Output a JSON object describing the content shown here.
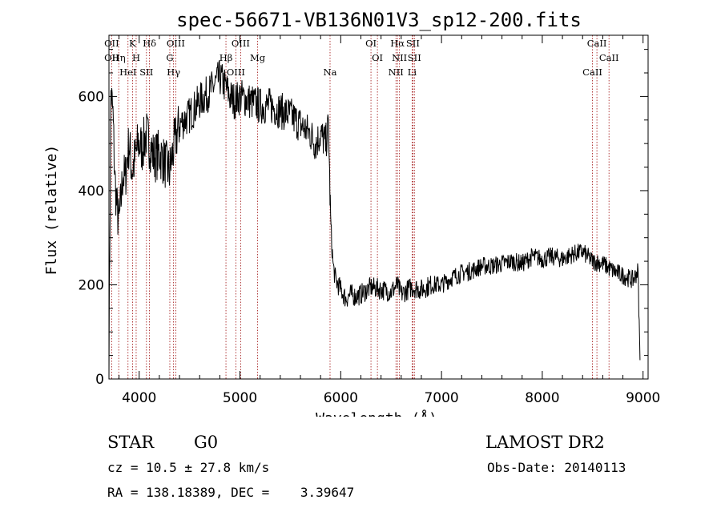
{
  "chart_data": {
    "type": "line",
    "title": "spec-56671-VB136N01V3_sp12-200.fits",
    "xlabel": "Wavelength (Å)",
    "ylabel": "Flux (relative)",
    "xlim": [
      3700,
      9050
    ],
    "ylim": [
      0,
      730
    ],
    "xticks": [
      4000,
      5000,
      6000,
      7000,
      8000,
      9000
    ],
    "yticks": [
      0,
      200,
      400,
      600
    ],
    "series": [
      {
        "name": "flux",
        "x": [
          3700,
          3720,
          3740,
          3760,
          3780,
          3800,
          3820,
          3840,
          3860,
          3880,
          3900,
          3930,
          3960,
          3990,
          4030,
          4070,
          4100,
          4150,
          4200,
          4250,
          4300,
          4350,
          4400,
          4500,
          4600,
          4700,
          4800,
          4860,
          4900,
          4950,
          5000,
          5100,
          5200,
          5300,
          5400,
          5500,
          5600,
          5700,
          5750,
          5800,
          5850,
          5880,
          5890,
          5900,
          5910,
          5925,
          5950,
          6000,
          6050,
          6100,
          6150,
          6200,
          6300,
          6400,
          6500,
          6560,
          6600,
          6700,
          6800,
          6900,
          7000,
          7100,
          7200,
          7300,
          7400,
          7500,
          7600,
          7700,
          7800,
          7900,
          8000,
          8100,
          8200,
          8300,
          8400,
          8500,
          8600,
          8700,
          8800,
          8900,
          8950,
          8970
        ],
        "y": [
          50,
          610,
          560,
          420,
          360,
          330,
          380,
          440,
          420,
          470,
          500,
          440,
          470,
          500,
          490,
          520,
          500,
          470,
          480,
          460,
          440,
          500,
          540,
          560,
          590,
          610,
          640,
          620,
          600,
          590,
          600,
          590,
          580,
          580,
          570,
          560,
          540,
          520,
          500,
          520,
          500,
          540,
          420,
          340,
          290,
          240,
          210,
          190,
          170,
          180,
          175,
          180,
          195,
          190,
          185,
          200,
          180,
          195,
          190,
          200,
          200,
          215,
          225,
          230,
          240,
          240,
          245,
          250,
          245,
          260,
          255,
          260,
          255,
          265,
          270,
          250,
          245,
          230,
          220,
          210,
          230,
          40
        ]
      }
    ],
    "line_markers": [
      {
        "wl": 3727,
        "labels": [
          "OII",
          "OII"
        ]
      },
      {
        "wl": 3797,
        "labels": [
          "Hη"
        ]
      },
      {
        "wl": 3889,
        "labels": [
          "HeI"
        ]
      },
      {
        "wl": 3934,
        "labels": [
          "K"
        ]
      },
      {
        "wl": 3970,
        "labels": [
          "H"
        ]
      },
      {
        "wl": 4072,
        "labels": [
          "SII"
        ]
      },
      {
        "wl": 4102,
        "labels": [
          "Hδ"
        ]
      },
      {
        "wl": 4304,
        "labels": [
          "G"
        ]
      },
      {
        "wl": 4341,
        "labels": [
          "Hγ"
        ]
      },
      {
        "wl": 4363,
        "labels": [
          "OIII"
        ]
      },
      {
        "wl": 4861,
        "labels": [
          "Hβ"
        ]
      },
      {
        "wl": 4959,
        "labels": [
          "OIII"
        ]
      },
      {
        "wl": 5007,
        "labels": [
          "OIII"
        ]
      },
      {
        "wl": 5175,
        "labels": [
          "Mg"
        ]
      },
      {
        "wl": 5894,
        "labels": [
          "Na"
        ]
      },
      {
        "wl": 6300,
        "labels": [
          "OI"
        ]
      },
      {
        "wl": 6364,
        "labels": [
          "OI"
        ]
      },
      {
        "wl": 6548,
        "labels": [
          "NII"
        ]
      },
      {
        "wl": 6563,
        "labels": [
          "Hα"
        ]
      },
      {
        "wl": 6583,
        "labels": [
          "NII"
        ]
      },
      {
        "wl": 6708,
        "labels": [
          "Li"
        ]
      },
      {
        "wl": 6716,
        "labels": [
          "SII"
        ]
      },
      {
        "wl": 6731,
        "labels": [
          "SII"
        ]
      },
      {
        "wl": 8498,
        "labels": [
          "CaII"
        ]
      },
      {
        "wl": 8542,
        "labels": [
          "CaII"
        ]
      },
      {
        "wl": 8662,
        "labels": [
          "CaII"
        ]
      }
    ]
  },
  "info": {
    "class": "STAR",
    "subclass": "G0",
    "survey": "LAMOST DR2",
    "cz": "cz = 10.5 ± 27.8 km/s",
    "obs_date": "Obs-Date: 20140113",
    "coords": "RA = 138.18389, DEC =    3.39647"
  }
}
